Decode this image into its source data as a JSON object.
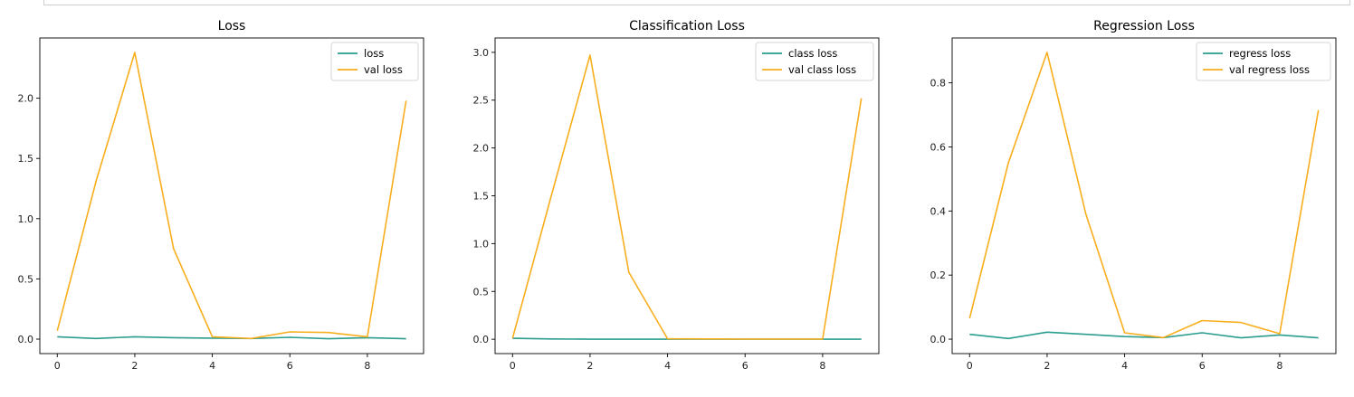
{
  "colors": {
    "train": "#2a9d8f",
    "val": "#f9ae1e"
  },
  "chart_data": [
    {
      "type": "line",
      "title": "Loss",
      "x": [
        0,
        1,
        2,
        3,
        4,
        5,
        6,
        7,
        8,
        9
      ],
      "xlim": [
        -0.45,
        9.45
      ],
      "ylim": [
        -0.12,
        2.5
      ],
      "xticks": [
        0,
        2,
        4,
        6,
        8
      ],
      "yticks": [
        0.0,
        0.5,
        1.0,
        1.5,
        2.0
      ],
      "ytick_labels": [
        "0.0",
        "0.5",
        "1.0",
        "1.5",
        "2.0"
      ],
      "legend": "top-right",
      "series": [
        {
          "name": "loss",
          "values": [
            0.02,
            0.005,
            0.02,
            0.012,
            0.008,
            0.005,
            0.015,
            0.003,
            0.012,
            0.003
          ]
        },
        {
          "name": "val loss",
          "values": [
            0.07,
            1.31,
            2.38,
            0.75,
            0.02,
            0.005,
            0.06,
            0.055,
            0.02,
            1.98
          ]
        }
      ]
    },
    {
      "type": "line",
      "title": "Classification Loss",
      "x": [
        0,
        1,
        2,
        3,
        4,
        5,
        6,
        7,
        8,
        9
      ],
      "xlim": [
        -0.45,
        9.45
      ],
      "ylim": [
        -0.15,
        3.15
      ],
      "xticks": [
        0,
        2,
        4,
        6,
        8
      ],
      "yticks": [
        0.0,
        0.5,
        1.0,
        1.5,
        2.0,
        2.5,
        3.0
      ],
      "ytick_labels": [
        "0.0",
        "0.5",
        "1.0",
        "1.5",
        "2.0",
        "2.5",
        "3.0"
      ],
      "legend": "top-right",
      "series": [
        {
          "name": "class loss",
          "values": [
            0.01,
            0.003,
            0.0,
            0.0,
            0.0,
            0.0,
            0.0,
            0.0,
            0.0,
            0.0
          ]
        },
        {
          "name": "val class loss",
          "values": [
            0.01,
            1.5,
            2.97,
            0.7,
            0.005,
            0.003,
            0.002,
            0.002,
            0.002,
            2.52
          ]
        }
      ]
    },
    {
      "type": "line",
      "title": "Regression Loss",
      "x": [
        0,
        1,
        2,
        3,
        4,
        5,
        6,
        7,
        8,
        9
      ],
      "xlim": [
        -0.45,
        9.45
      ],
      "ylim": [
        -0.045,
        0.94
      ],
      "xticks": [
        0,
        2,
        4,
        6,
        8
      ],
      "yticks": [
        0.0,
        0.2,
        0.4,
        0.6,
        0.8
      ],
      "ytick_labels": [
        "0.0",
        "0.2",
        "0.4",
        "0.6",
        "0.8"
      ],
      "legend": "top-right",
      "series": [
        {
          "name": "regress loss",
          "values": [
            0.015,
            0.002,
            0.022,
            0.015,
            0.008,
            0.005,
            0.02,
            0.004,
            0.013,
            0.004
          ]
        },
        {
          "name": "val regress loss",
          "values": [
            0.065,
            0.55,
            0.895,
            0.39,
            0.02,
            0.005,
            0.058,
            0.052,
            0.017,
            0.715
          ]
        }
      ]
    }
  ]
}
